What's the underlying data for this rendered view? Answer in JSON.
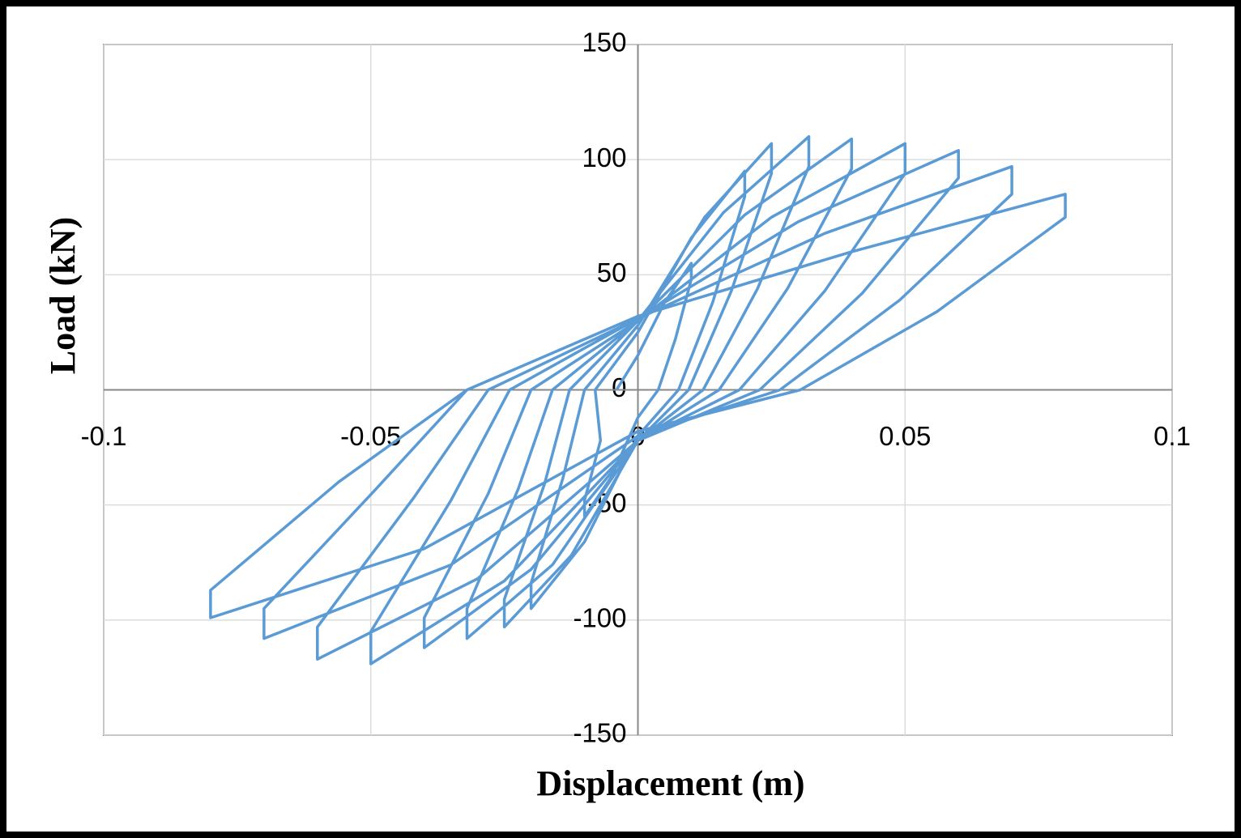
{
  "chart_data": {
    "type": "line",
    "xlabel": "Displacement (m)",
    "ylabel": "Load (kN)",
    "x": [
      -0.004,
      0,
      0.005,
      0.01,
      0.01,
      0.007,
      0.0038,
      0,
      -0.005,
      -0.01,
      -0.01,
      -0.007,
      -0.008,
      0,
      0.01,
      0.02,
      0.02,
      0.014,
      0.0076,
      0,
      -0.01,
      -0.02,
      -0.02,
      -0.014,
      -0.01,
      0,
      0.0125,
      0.025,
      0.025,
      0.0175,
      0.0095,
      0,
      -0.0125,
      -0.025,
      -0.025,
      -0.0175,
      -0.0128,
      0,
      0.016,
      0.032,
      0.032,
      0.0224,
      0.0122,
      0,
      -0.016,
      -0.032,
      -0.032,
      -0.0224,
      -0.016,
      0,
      0.02,
      0.04,
      0.04,
      0.028,
      0.0152,
      0,
      -0.02,
      -0.04,
      -0.04,
      -0.028,
      -0.02,
      0,
      0.025,
      0.05,
      0.05,
      0.035,
      0.019,
      0,
      -0.025,
      -0.05,
      -0.05,
      -0.035,
      -0.024,
      0,
      0.03,
      0.06,
      0.06,
      0.042,
      0.0228,
      0,
      -0.03,
      -0.06,
      -0.06,
      -0.042,
      -0.028,
      0,
      0.035,
      0.07,
      0.07,
      0.049,
      0.0266,
      0,
      -0.035,
      -0.07,
      -0.07,
      -0.049,
      -0.032,
      0,
      0.04,
      0.08,
      0.08,
      0.056,
      0.0304,
      0,
      -0.04,
      -0.08,
      -0.08,
      -0.056,
      -0.032
    ],
    "values": [
      0,
      15,
      38,
      55,
      48,
      22,
      0,
      -12,
      -38,
      -55,
      -48,
      -22,
      0,
      25,
      66,
      95,
      84,
      38,
      0,
      -20,
      -66,
      -95,
      -84,
      -38,
      0,
      28,
      75,
      107,
      94,
      43,
      0,
      -22,
      -72,
      -103,
      -91,
      -41,
      0,
      30,
      77,
      110,
      97,
      44,
      0,
      -22,
      -76,
      -108,
      -95,
      -43,
      0,
      30,
      76,
      109,
      96,
      44,
      0,
      -22,
      -78,
      -112,
      -99,
      -45,
      0,
      30,
      75,
      107,
      94,
      43,
      0,
      -22,
      -83,
      -119,
      -105,
      -48,
      0,
      31,
      73,
      104,
      92,
      42,
      0,
      -22,
      -82,
      -117,
      -103,
      -47,
      0,
      31,
      68,
      97,
      85,
      39,
      0,
      -20,
      -76,
      -108,
      -95,
      -43,
      0,
      32,
      60,
      85,
      75,
      34,
      0,
      -18,
      -69,
      -99,
      -87,
      -40,
      0
    ],
    "color": "#5b9bd5",
    "xlim": [
      -0.1,
      0.1
    ],
    "xticks": [
      -0.1,
      -0.05,
      0,
      0.05,
      0.1
    ],
    "ylim": [
      -150,
      150
    ],
    "yticks": [
      -150,
      -100,
      -50,
      0,
      50,
      100,
      150
    ],
    "grid": true
  }
}
